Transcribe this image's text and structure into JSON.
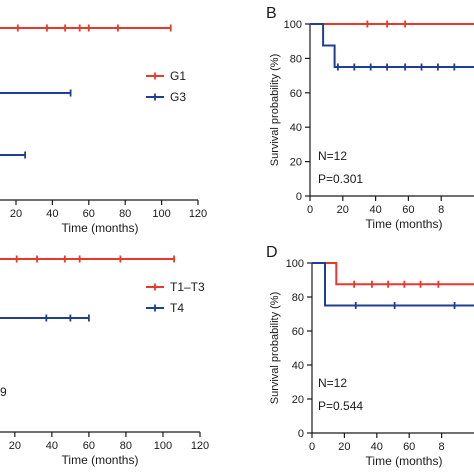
{
  "colors": {
    "red": "#e8392b",
    "blue": "#1f3f93",
    "axis": "#1a1a1a"
  },
  "chart_data": [
    {
      "panel": "A",
      "type": "line",
      "panel_label": "",
      "title": "",
      "xlabel": "Time (months)",
      "ylabel": "",
      "xlim": [
        0,
        120
      ],
      "xticks": [
        "20",
        "40",
        "60",
        "80",
        "100",
        "120"
      ],
      "grid": false,
      "legend_position": "right",
      "annotations": [],
      "series": [
        {
          "name": "G1",
          "color": "red",
          "steps": [
            [
              0,
              100
            ],
            [
              105,
              100
            ]
          ],
          "censored": [
            21,
            37,
            47,
            55,
            60,
            76,
            105
          ]
        },
        {
          "name": "G3",
          "color": "blue",
          "steps": [
            [
              0,
              75
            ],
            [
              50,
              75
            ]
          ],
          "censored": [
            50
          ]
        },
        {
          "name": "",
          "color": "blue",
          "steps": [
            [
              0,
              50
            ],
            [
              25,
              50
            ]
          ],
          "censored": [
            25
          ]
        }
      ]
    },
    {
      "panel": "B",
      "type": "line",
      "panel_label": "B",
      "title": "",
      "xlabel": "Time (months)",
      "ylabel": "Survival probability (%)",
      "xlim": [
        0,
        100
      ],
      "ylim": [
        0,
        100
      ],
      "xticks": [
        "0",
        "20",
        "40",
        "60",
        "8"
      ],
      "yticks": [
        "0",
        "20",
        "40",
        "60",
        "80",
        "100"
      ],
      "grid": false,
      "annotations": [
        "N=12",
        "P=0.301"
      ],
      "series": [
        {
          "name": "",
          "color": "red",
          "steps": [
            [
              0,
              100
            ],
            [
              100,
              100
            ]
          ],
          "censored": [
            35,
            47,
            58
          ]
        },
        {
          "name": "",
          "color": "blue",
          "steps": [
            [
              0,
              100
            ],
            [
              8,
              100
            ],
            [
              8,
              87.5
            ],
            [
              15,
              87.5
            ],
            [
              15,
              75
            ],
            [
              100,
              75
            ]
          ],
          "censored": [
            17,
            27,
            37,
            47,
            58,
            68,
            78,
            88
          ]
        }
      ]
    },
    {
      "panel": "C",
      "type": "line",
      "panel_label": "",
      "title": "",
      "xlabel": "Time (months)",
      "ylabel": "",
      "xlim": [
        0,
        120
      ],
      "xticks": [
        "20",
        "40",
        "60",
        "80",
        "100",
        "120"
      ],
      "grid": false,
      "legend_position": "right",
      "annotations": [
        "9"
      ],
      "series": [
        {
          "name": "T1–T3",
          "color": "red",
          "steps": [
            [
              0,
              100
            ],
            [
              106,
              100
            ]
          ],
          "censored": [
            21,
            32,
            47,
            55,
            77,
            106
          ]
        },
        {
          "name": "T4",
          "color": "blue",
          "steps": [
            [
              0,
              75
            ],
            [
              60,
              75
            ]
          ],
          "censored": [
            37,
            50,
            60
          ]
        }
      ]
    },
    {
      "panel": "D",
      "type": "line",
      "panel_label": "D",
      "title": "",
      "xlabel": "Time (months)",
      "ylabel": "Survival probability (%)",
      "xlim": [
        0,
        100
      ],
      "ylim": [
        0,
        100
      ],
      "xticks": [
        "0",
        "20",
        "40",
        "60",
        "8"
      ],
      "yticks": [
        "0",
        "20",
        "40",
        "60",
        "80",
        "100"
      ],
      "grid": false,
      "annotations": [
        "N=12",
        "P=0.544"
      ],
      "series": [
        {
          "name": "",
          "color": "red",
          "steps": [
            [
              0,
              100
            ],
            [
              15,
              100
            ],
            [
              15,
              87.5
            ],
            [
              100,
              87.5
            ]
          ],
          "censored": [
            26,
            37,
            47,
            57,
            67,
            78
          ]
        },
        {
          "name": "",
          "color": "blue",
          "steps": [
            [
              0,
              100
            ],
            [
              8,
              100
            ],
            [
              8,
              75
            ],
            [
              100,
              75
            ]
          ],
          "censored": [
            27,
            51,
            88
          ]
        }
      ]
    }
  ]
}
